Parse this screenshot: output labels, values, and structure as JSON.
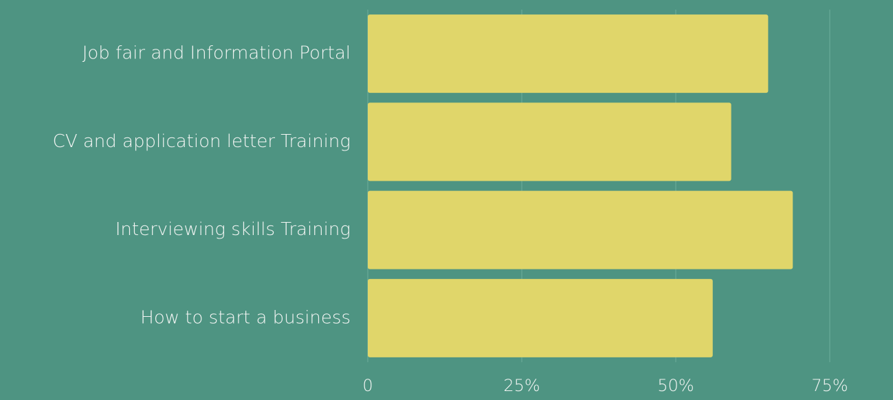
{
  "chart_data": {
    "type": "barh",
    "categories": [
      "Job fair and Information Portal",
      "CV and application letter Training",
      "Interviewing skills Training",
      "How to start a business"
    ],
    "values": [
      65,
      59,
      69,
      56
    ],
    "color": "#e0d66a",
    "xlim": [
      0,
      75
    ],
    "xticks": [
      0,
      {
        "value": 25,
        "label": "25%"
      },
      {
        "value": 50,
        "label": "50%"
      },
      {
        "value": 75,
        "label": "75%"
      }
    ],
    "grid": true
  }
}
